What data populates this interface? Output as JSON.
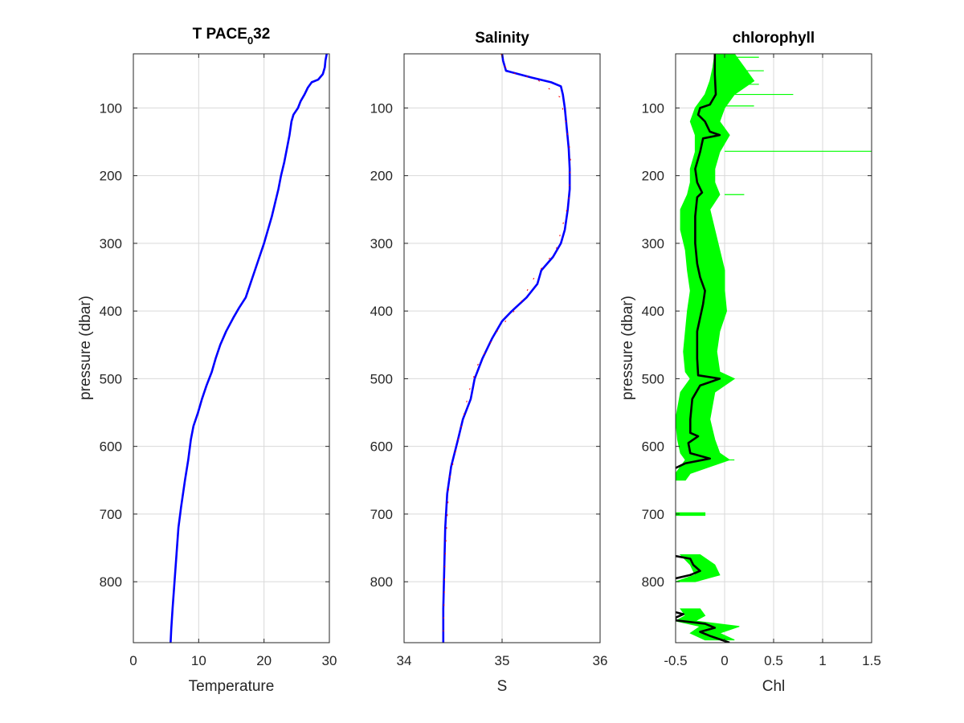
{
  "chart_data": [
    {
      "type": "line",
      "title": "T PACE",
      "title_subscript": "0",
      "title_suffix": "32",
      "xlabel": "Temperature",
      "ylabel": "pressure (dbar)",
      "xlim": [
        0,
        30
      ],
      "ylim": [
        20,
        890
      ],
      "y_reversed": true,
      "xticks": [
        "0",
        "10",
        "20",
        "30"
      ],
      "yticks": [
        "100",
        "200",
        "300",
        "400",
        "500",
        "600",
        "700",
        "800"
      ],
      "grid": true,
      "series": [
        {
          "color": "#0000ff",
          "points": [
            [
              29.6,
              20
            ],
            [
              29.4,
              30
            ],
            [
              29.3,
              40
            ],
            [
              29.0,
              50
            ],
            [
              28.3,
              58
            ],
            [
              27.3,
              62
            ],
            [
              26.7,
              70
            ],
            [
              26.2,
              80
            ],
            [
              25.6,
              90
            ],
            [
              25.2,
              100
            ],
            [
              24.5,
              110
            ],
            [
              24.2,
              120
            ],
            [
              23.9,
              140
            ],
            [
              23.5,
              160
            ],
            [
              23.1,
              180
            ],
            [
              22.6,
              200
            ],
            [
              22.2,
              220
            ],
            [
              21.7,
              240
            ],
            [
              21.2,
              260
            ],
            [
              20.6,
              280
            ],
            [
              20.0,
              300
            ],
            [
              19.3,
              320
            ],
            [
              18.6,
              340
            ],
            [
              17.9,
              360
            ],
            [
              17.2,
              380
            ],
            [
              16.2,
              395
            ],
            [
              15.3,
              410
            ],
            [
              14.2,
              430
            ],
            [
              13.3,
              450
            ],
            [
              12.6,
              470
            ],
            [
              12.0,
              490
            ],
            [
              11.2,
              510
            ],
            [
              10.5,
              530
            ],
            [
              9.9,
              550
            ],
            [
              9.2,
              570
            ],
            [
              8.8,
              590
            ],
            [
              8.4,
              620
            ],
            [
              7.9,
              650
            ],
            [
              7.3,
              690
            ],
            [
              6.9,
              720
            ],
            [
              6.6,
              760
            ],
            [
              6.3,
              800
            ],
            [
              6.0,
              840
            ],
            [
              5.8,
              870
            ],
            [
              5.7,
              890
            ]
          ]
        }
      ]
    },
    {
      "type": "line",
      "title": "Salinity",
      "xlabel": "S",
      "ylabel": "",
      "xlim": [
        34,
        36
      ],
      "ylim": [
        20,
        890
      ],
      "y_reversed": true,
      "xticks": [
        "34",
        "35",
        "36"
      ],
      "yticks": [
        "100",
        "200",
        "300",
        "400",
        "500",
        "600",
        "700",
        "800"
      ],
      "grid": true,
      "series": [
        {
          "color": "#0000ff",
          "points": [
            [
              35.0,
              20
            ],
            [
              35.01,
              30
            ],
            [
              35.04,
              45
            ],
            [
              35.3,
              55
            ],
            [
              35.5,
              62
            ],
            [
              35.6,
              68
            ],
            [
              35.62,
              80
            ],
            [
              35.64,
              100
            ],
            [
              35.66,
              130
            ],
            [
              35.68,
              160
            ],
            [
              35.69,
              190
            ],
            [
              35.69,
              220
            ],
            [
              35.67,
              250
            ],
            [
              35.64,
              280
            ],
            [
              35.6,
              300
            ],
            [
              35.52,
              320
            ],
            [
              35.4,
              340
            ],
            [
              35.36,
              360
            ],
            [
              35.25,
              380
            ],
            [
              35.1,
              400
            ],
            [
              35.0,
              415
            ],
            [
              34.9,
              440
            ],
            [
              34.8,
              470
            ],
            [
              34.72,
              500
            ],
            [
              34.68,
              530
            ],
            [
              34.6,
              560
            ],
            [
              34.55,
              590
            ],
            [
              34.48,
              630
            ],
            [
              34.44,
              670
            ],
            [
              34.42,
              720
            ],
            [
              34.41,
              780
            ],
            [
              34.4,
              840
            ],
            [
              34.4,
              890
            ]
          ]
        },
        {
          "color": "#ff0000",
          "points": [
            [
              34.99,
              20
            ],
            [
              35.05,
              46
            ],
            [
              35.35,
              57
            ],
            [
              35.59,
              84
            ],
            [
              35.65,
              120
            ],
            [
              35.7,
              170
            ],
            [
              35.68,
              240
            ],
            [
              35.55,
              310
            ],
            [
              35.33,
              350
            ],
            [
              35.18,
              390
            ],
            [
              34.95,
              430
            ],
            [
              34.75,
              480
            ],
            [
              34.66,
              520
            ],
            [
              34.57,
              580
            ],
            [
              34.46,
              650
            ],
            [
              34.42,
              760
            ],
            [
              34.4,
              880
            ]
          ]
        }
      ]
    },
    {
      "type": "line",
      "title": "chlorophyll",
      "xlabel": "Chl",
      "ylabel": "pressure (dbar)",
      "xlim": [
        -0.5,
        1.5
      ],
      "ylim": [
        20,
        890
      ],
      "y_reversed": true,
      "xticks": [
        "-0.5",
        "0",
        "0.5",
        "1",
        "1.5"
      ],
      "yticks": [
        "100",
        "200",
        "300",
        "400",
        "500",
        "600",
        "700",
        "800"
      ],
      "grid": true,
      "series": [
        {
          "color": "#00ff00",
          "band": true,
          "points": [
            [
              -0.1,
              0.1,
              20
            ],
            [
              -0.12,
              0.2,
              40
            ],
            [
              -0.15,
              0.3,
              60
            ],
            [
              -0.2,
              0.1,
              80
            ],
            [
              -0.3,
              0.0,
              100
            ],
            [
              -0.35,
              -0.05,
              120
            ],
            [
              -0.3,
              0.05,
              140
            ],
            [
              -0.3,
              -0.05,
              165
            ],
            [
              -0.35,
              -0.1,
              190
            ],
            [
              -0.35,
              -0.1,
              210
            ],
            [
              -0.38,
              -0.05,
              228
            ],
            [
              -0.45,
              -0.15,
              250
            ],
            [
              -0.45,
              -0.1,
              280
            ],
            [
              -0.4,
              -0.05,
              310
            ],
            [
              -0.38,
              0.0,
              340
            ],
            [
              -0.35,
              0.0,
              370
            ],
            [
              -0.38,
              0.02,
              400
            ],
            [
              -0.4,
              -0.05,
              430
            ],
            [
              -0.42,
              -0.08,
              460
            ],
            [
              -0.4,
              -0.05,
              490
            ],
            [
              -0.35,
              0.1,
              500
            ],
            [
              -0.45,
              -0.1,
              520
            ],
            [
              -0.5,
              -0.15,
              560
            ],
            [
              -0.48,
              -0.1,
              590
            ],
            [
              -0.45,
              -0.05,
              610
            ],
            [
              -0.4,
              0.05,
              620
            ],
            [
              -0.5,
              -0.35,
              640
            ],
            [
              -0.5,
              -0.4,
              650
            ]
          ]
        },
        {
          "color": "#00ff00",
          "band": true,
          "points": [
            [
              -0.5,
              -0.2,
              698
            ],
            [
              -0.5,
              -0.2,
              702
            ]
          ]
        },
        {
          "color": "#00ff00",
          "band": true,
          "points": [
            [
              -0.45,
              -0.25,
              760
            ],
            [
              -0.35,
              -0.1,
              775
            ],
            [
              -0.3,
              -0.05,
              790
            ],
            [
              -0.5,
              -0.3,
              800
            ]
          ]
        },
        {
          "color": "#00ff00",
          "band": true,
          "points": [
            [
              -0.45,
              -0.25,
              840
            ],
            [
              -0.4,
              -0.2,
              850
            ],
            [
              -0.5,
              -0.3,
              858
            ],
            [
              -0.25,
              0.15,
              866
            ],
            [
              -0.35,
              -0.05,
              876
            ],
            [
              -0.2,
              0.1,
              886
            ]
          ]
        },
        {
          "color": "#00ff00",
          "spikes": [
            [
              0.0,
              0.35,
              25
            ],
            [
              0.0,
              0.4,
              45
            ],
            [
              0.0,
              0.35,
              65
            ],
            [
              0.0,
              0.7,
              80
            ],
            [
              0.0,
              0.3,
              97
            ],
            [
              0.0,
              1.5,
              164
            ],
            [
              0.0,
              0.2,
              228
            ],
            [
              0.0,
              0.1,
              620
            ]
          ]
        },
        {
          "color": "#000000",
          "points": [
            [
              -0.1,
              20
            ],
            [
              -0.1,
              50
            ],
            [
              -0.09,
              80
            ],
            [
              -0.15,
              95
            ],
            [
              -0.25,
              100
            ],
            [
              -0.27,
              110
            ],
            [
              -0.2,
              120
            ],
            [
              -0.15,
              135
            ],
            [
              -0.05,
              140
            ],
            [
              -0.22,
              145
            ],
            [
              -0.25,
              165
            ],
            [
              -0.3,
              190
            ],
            [
              -0.28,
              210
            ],
            [
              -0.23,
              225
            ],
            [
              -0.28,
              232
            ],
            [
              -0.3,
              260
            ],
            [
              -0.3,
              300
            ],
            [
              -0.28,
              330
            ],
            [
              -0.25,
              350
            ],
            [
              -0.2,
              370
            ],
            [
              -0.22,
              390
            ],
            [
              -0.25,
              410
            ],
            [
              -0.28,
              430
            ],
            [
              -0.28,
              470
            ],
            [
              -0.27,
              495
            ],
            [
              -0.05,
              500
            ],
            [
              -0.25,
              510
            ],
            [
              -0.33,
              530
            ],
            [
              -0.35,
              560
            ],
            [
              -0.35,
              580
            ],
            [
              -0.27,
              585
            ],
            [
              -0.37,
              595
            ],
            [
              -0.35,
              610
            ],
            [
              -0.15,
              618
            ],
            [
              -0.4,
              625
            ],
            [
              -0.5,
              632
            ]
          ]
        },
        {
          "color": "#000000",
          "points": [
            [
              -0.5,
              762
            ],
            [
              -0.35,
              766
            ],
            [
              -0.32,
              775
            ],
            [
              -0.25,
              784
            ],
            [
              -0.35,
              790
            ],
            [
              -0.5,
              795
            ]
          ]
        },
        {
          "color": "#000000",
          "points": [
            [
              -0.5,
              845
            ],
            [
              -0.42,
              848
            ],
            [
              -0.5,
              853
            ],
            [
              -0.5,
              857
            ],
            [
              -0.2,
              862
            ],
            [
              -0.1,
              868
            ],
            [
              -0.25,
              874
            ],
            [
              -0.15,
              880
            ],
            [
              -0.05,
              885
            ],
            [
              0.05,
              890
            ]
          ]
        }
      ]
    }
  ]
}
